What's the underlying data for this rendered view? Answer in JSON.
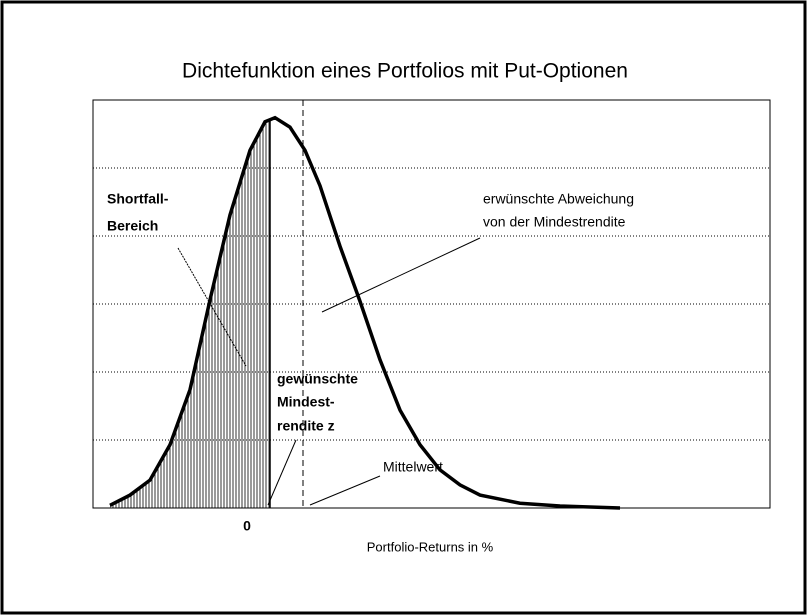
{
  "chart_data": {
    "type": "line",
    "title": "Dichtefunktion eines Portfolios mit Put-Optionen",
    "xlabel": "Portfolio-Returns in %",
    "x": [
      -13.7,
      -11.7,
      -9.7,
      -7.7,
      -5.7,
      -3.7,
      -1.7,
      0.3,
      1.8,
      2.8,
      4.3,
      5.8,
      7.3,
      9.3,
      11.3,
      13.3,
      15.3,
      17.3,
      19.3,
      21.3,
      23.3,
      27.3,
      31.3,
      37.3
    ],
    "values": [
      0.04,
      0.19,
      0.41,
      0.93,
      1.74,
      3.06,
      4.31,
      5.26,
      5.68,
      5.74,
      5.6,
      5.26,
      4.74,
      3.85,
      3.04,
      2.18,
      1.44,
      0.93,
      0.56,
      0.34,
      0.19,
      0.07,
      0.03,
      0
    ],
    "color": "#000000",
    "xlim": [
      -15.4,
      52.3
    ],
    "xticks": [
      0
    ],
    "ylim": [
      0,
      6
    ],
    "yticks": [
      0,
      1,
      2,
      3,
      4,
      5,
      6
    ],
    "grid": true,
    "threshold": 2.3,
    "mean": 5.6,
    "annotations": [
      {
        "lines": [
          "Shortfall-",
          "Bereich"
        ]
      },
      {
        "lines": [
          "erwünschte Abweichung",
          "von der Mindestrendite"
        ]
      },
      {
        "lines": [
          "gewünschte",
          "Mindest-",
          "rendite z"
        ]
      },
      {
        "lines": [
          "Mittelwert"
        ]
      }
    ]
  }
}
